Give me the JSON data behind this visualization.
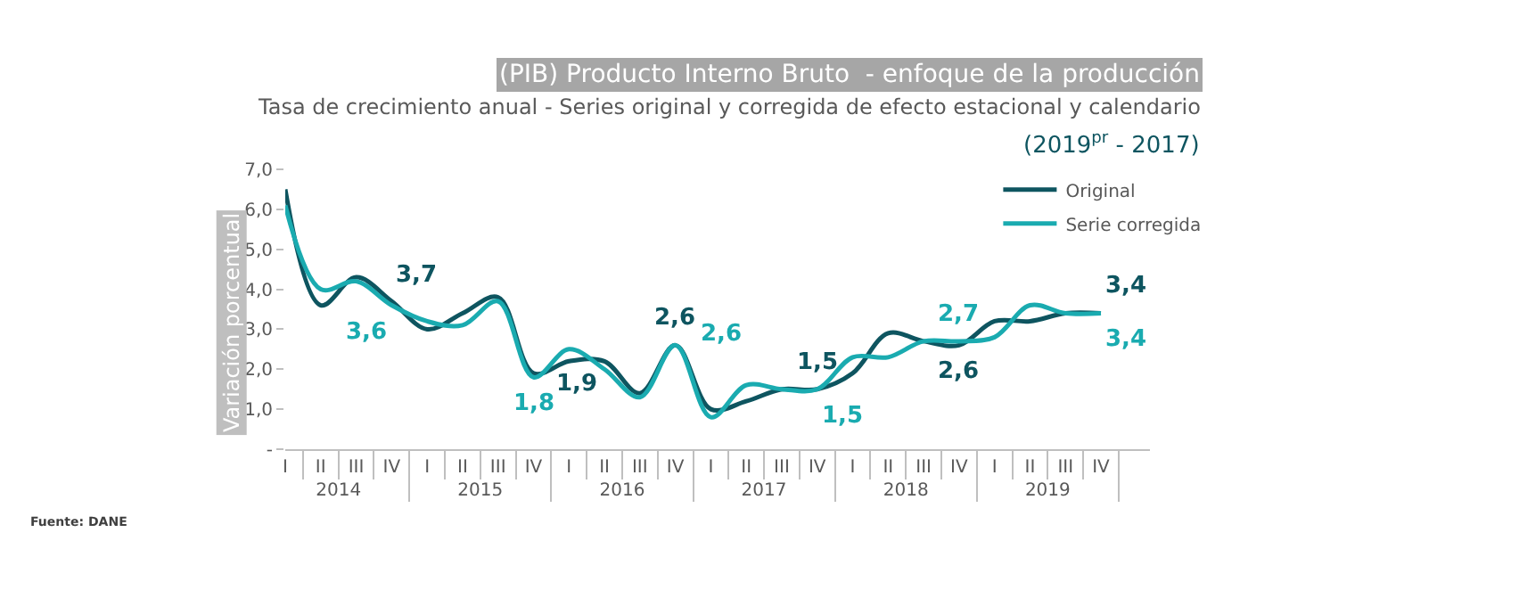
{
  "chart_data": {
    "type": "line",
    "title": "(PIB) Producto Interno Bruto  - enfoque de la producción",
    "subtitle": "Tasa de crecimiento anual - Series original y corregida de efecto estacional y calendario\n(2019$^{pr}$ - 2017)",
    "ylabel": "Variación porcentual",
    "categories": [
      "I",
      "II",
      "III",
      "IV",
      "I",
      "II",
      "III",
      "IV",
      "I",
      "II",
      "III",
      "IV",
      "I",
      "II",
      "III",
      "IV",
      "I",
      "II",
      "III",
      "IV",
      "I",
      "II",
      "III",
      "IV"
    ],
    "series": [
      {
        "name": "Original",
        "color": "#0e5560",
        "values": [
          6.5,
          3.6,
          4.3,
          3.7,
          3.0,
          3.4,
          3.8,
          1.9,
          2.2,
          2.2,
          1.4,
          2.6,
          1.0,
          1.2,
          1.5,
          1.5,
          1.9,
          2.9,
          2.7,
          2.6,
          3.2,
          3.2,
          3.4,
          3.4
        ],
        "value_labels": [
          null,
          null,
          null,
          "3,7",
          null,
          null,
          null,
          "1,9",
          null,
          null,
          null,
          "2,6",
          null,
          null,
          null,
          "1,5",
          null,
          null,
          null,
          "2,6",
          null,
          null,
          null,
          "3,4"
        ]
      },
      {
        "name": "Serie corregida",
        "color": "#1aabb0",
        "values": [
          6.1,
          4.0,
          4.2,
          3.6,
          3.2,
          3.1,
          3.7,
          1.8,
          2.5,
          2.0,
          1.3,
          2.6,
          0.8,
          1.6,
          1.5,
          1.5,
          2.3,
          2.3,
          2.7,
          2.7,
          2.8,
          3.6,
          3.4,
          3.4
        ],
        "value_labels": [
          null,
          null,
          null,
          "3,6",
          null,
          null,
          null,
          "1,8",
          null,
          null,
          null,
          "2,6",
          null,
          null,
          null,
          "1,5",
          null,
          null,
          null,
          "2,7",
          null,
          null,
          null,
          "3,4"
        ]
      }
    ],
    "ylim": [
      0,
      7
    ],
    "yticks": [
      {
        "value": 0,
        "label": "-"
      },
      {
        "value": 1,
        "label": "1,0"
      },
      {
        "value": 2,
        "label": "2,0"
      },
      {
        "value": 3,
        "label": "3,0"
      },
      {
        "value": 4,
        "label": "4,0"
      },
      {
        "value": 5,
        "label": "5,0"
      },
      {
        "value": 6,
        "label": "6,0"
      },
      {
        "value": 7,
        "label": "7,0"
      }
    ],
    "annotations": [
      "Fuente: DANE",
      "2014",
      "2015",
      "2016",
      "2017",
      "2018",
      "2019"
    ],
    "legend": "top right",
    "grid": false,
    "marker": "none",
    "line_style": "solid"
  }
}
